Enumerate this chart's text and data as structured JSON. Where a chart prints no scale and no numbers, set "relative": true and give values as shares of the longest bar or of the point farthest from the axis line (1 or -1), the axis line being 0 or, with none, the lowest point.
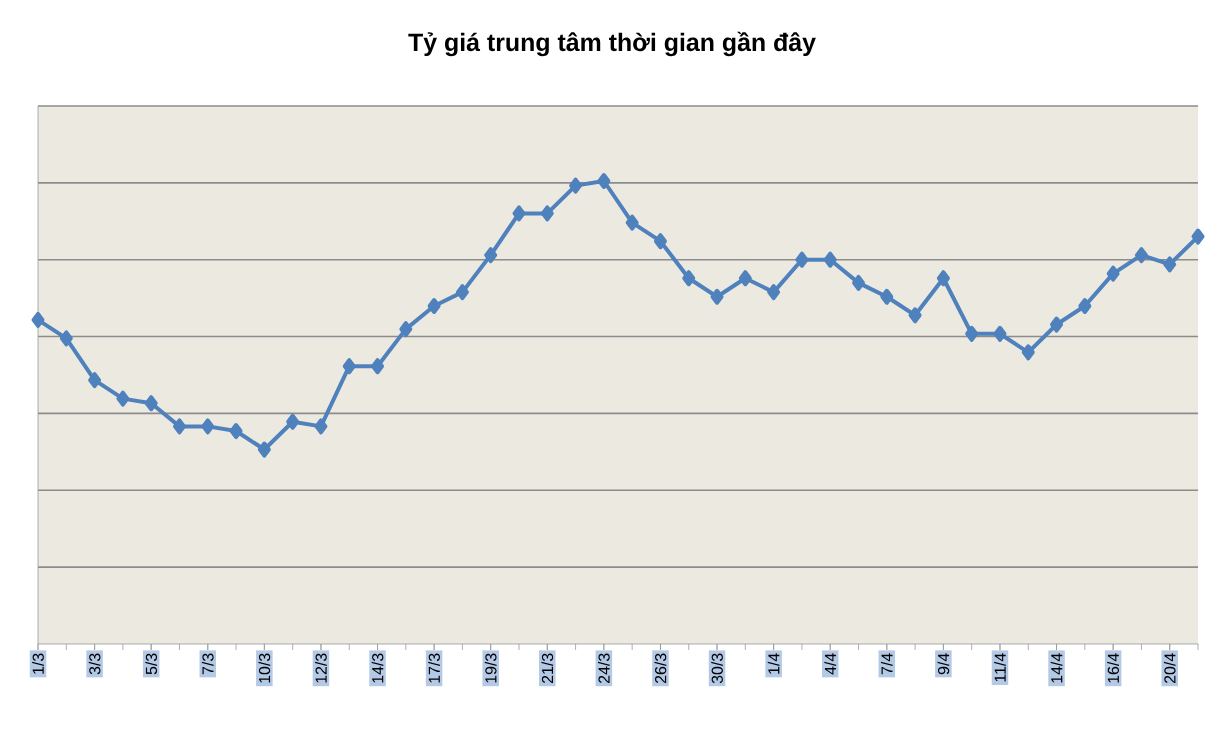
{
  "chart_data": {
    "type": "line",
    "title": "Tỷ giá trung tâm thời gian gần đây",
    "relative": true,
    "grid": "y",
    "marker": "diamond",
    "line_style": "solid",
    "categories": [
      "1/3",
      null,
      "3/3",
      null,
      "5/3",
      null,
      "7/3",
      null,
      "10/3",
      null,
      "12/3",
      null,
      "14/3",
      null,
      "17/3",
      null,
      "19/3",
      null,
      "21/3",
      null,
      "24/3",
      null,
      "26/3",
      null,
      "30/3",
      null,
      "1/4",
      null,
      "4/4",
      null,
      "7/4",
      null,
      "9/4",
      null,
      "11/4",
      null,
      "14/4",
      null,
      "16/4",
      null,
      "20/4",
      null
    ],
    "series": [
      {
        "color": "#4f81bd",
        "values": [
          0.7,
          0.66,
          0.57,
          0.53,
          0.52,
          0.47,
          0.47,
          0.46,
          0.42,
          0.48,
          0.47,
          0.6,
          0.6,
          0.68,
          0.73,
          0.76,
          0.84,
          0.93,
          0.93,
          0.99,
          1.0,
          0.91,
          0.87,
          0.79,
          0.75,
          0.79,
          0.76,
          0.83,
          0.83,
          0.78,
          0.75,
          0.71,
          0.79,
          0.67,
          0.67,
          0.63,
          0.69,
          0.73,
          0.8,
          0.84,
          0.82,
          0.88
        ]
      }
    ]
  }
}
